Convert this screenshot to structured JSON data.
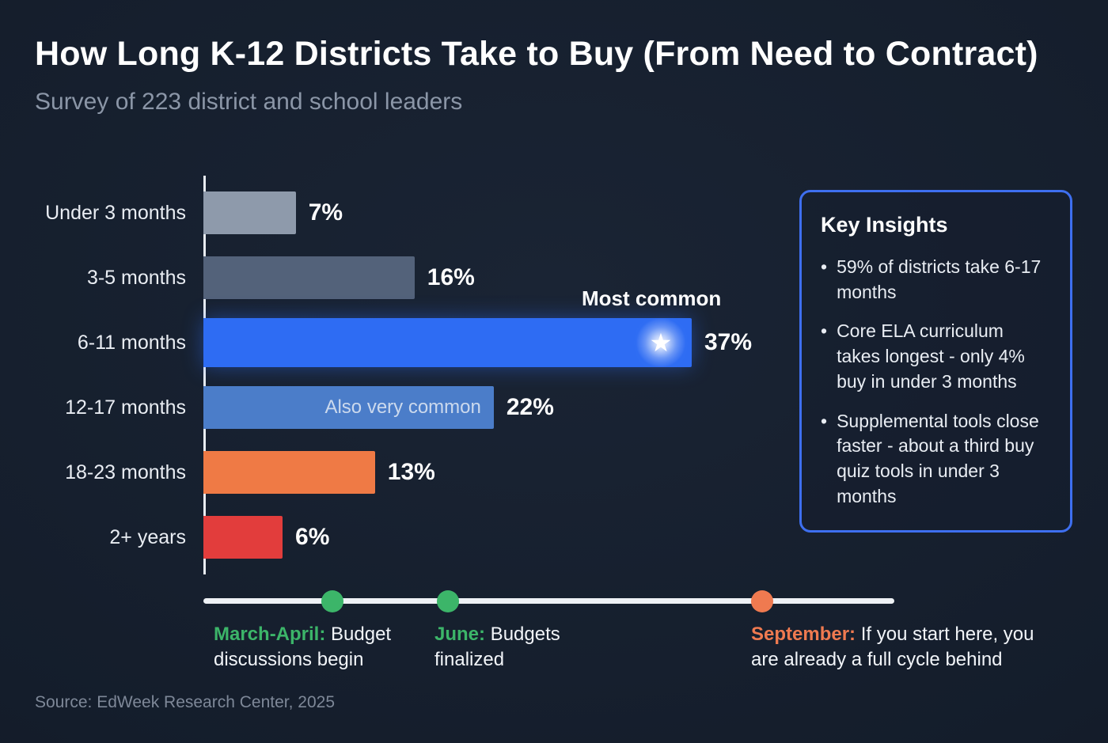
{
  "header": {
    "title": "How Long K-12 Districts Take to Buy (From Need to Contract)",
    "subtitle": "Survey of 223 district and school leaders"
  },
  "chart_data": {
    "type": "bar",
    "orientation": "horizontal",
    "title": "How Long K-12 Districts Take to Buy (From Need to Contract)",
    "categories": [
      "Under 3 months",
      "3-5 months",
      "6-11 months",
      "12-17 months",
      "18-23 months",
      "2+ years"
    ],
    "values": [
      7,
      16,
      37,
      22,
      13,
      6
    ],
    "value_labels": [
      "7%",
      "16%",
      "37%",
      "22%",
      "13%",
      "6%"
    ],
    "bar_colors": [
      "#8e9aab",
      "#53627a",
      "#2e6cf3",
      "#4b7dc9",
      "#ef7a45",
      "#e23d3c"
    ],
    "xlim": [
      0,
      37
    ],
    "grid": false,
    "annotations": {
      "most_common": "Most common",
      "also_very_common": "Also very common"
    }
  },
  "icons": {
    "star": "★",
    "bullet": "•"
  },
  "insights": {
    "title": "Key Insights",
    "border_color": "#3e6ff0",
    "items": [
      "59% of districts take 6-17 months",
      "Core ELA curriculum takes longest - only 4% buy in under 3 months",
      "Supplemental tools close faster - about a third buy quiz tools in under 3 months"
    ]
  },
  "timeline": {
    "events": [
      {
        "label": "March-April:",
        "text": " Budget discussions begin",
        "color": "#3cb569",
        "position_pct": 18.7
      },
      {
        "label": "June:",
        "text": " Budgets finalized",
        "color": "#3cb569",
        "position_pct": 35.4
      },
      {
        "label": "September:",
        "text": " If you start here, you are already a full cycle behind",
        "color": "#ef7a50",
        "position_pct": 80.9
      }
    ]
  },
  "footer": {
    "source": "Source: EdWeek Research Center, 2025"
  }
}
